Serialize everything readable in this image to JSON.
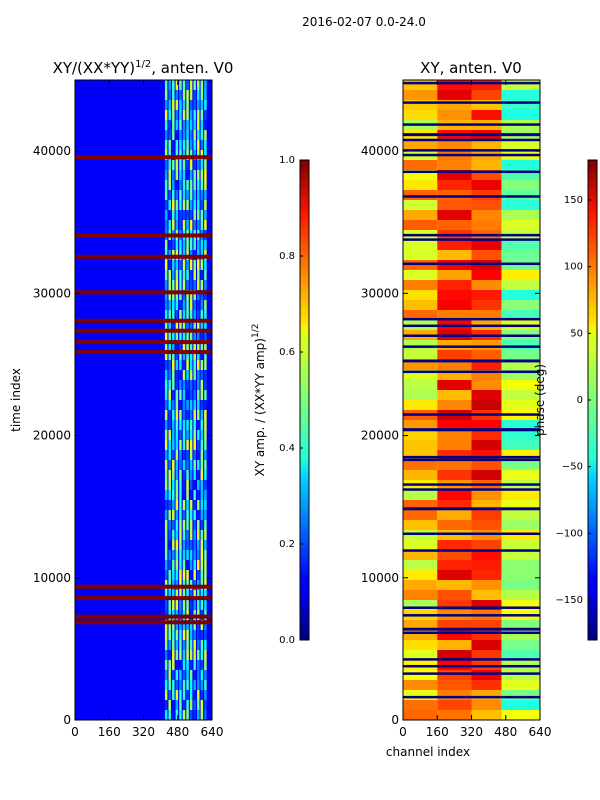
{
  "figure": {
    "suptitle": "2016-02-07 0.0-24.0"
  },
  "chart_data": [
    {
      "type": "heatmap",
      "title_prefix": "XY/(XX*YY)",
      "title_exponent": "1/2",
      "title_suffix": ", anten. V0",
      "xlabel": "",
      "ylabel": "time index",
      "xlim": [
        0,
        640
      ],
      "ylim": [
        0,
        45000
      ],
      "xticks": [
        0,
        160,
        320,
        480,
        640
      ],
      "yticks": [
        0,
        10000,
        20000,
        30000,
        40000
      ],
      "colorbar": {
        "label_prefix": "XY amp. / (XX*YY amp)",
        "label_exponent": "1/2",
        "range": [
          0.0,
          1.0
        ],
        "ticks": [
          "0.0",
          "0.2",
          "0.4",
          "0.6",
          "0.8",
          "1.0"
        ],
        "colormap": "jet"
      },
      "description_values": {
        "background_value": 0.12,
        "active_channel_range": [
          420,
          620
        ],
        "active_channel_value": 0.45,
        "saturated_rows": [
          6800,
          7200,
          8500,
          9300,
          25800,
          26500,
          27300,
          28000,
          30000,
          32500,
          34000,
          39500
        ]
      }
    },
    {
      "type": "heatmap",
      "title": "XY, anten. V0",
      "xlabel": "channel index",
      "ylabel": "",
      "xlim": [
        0,
        640
      ],
      "ylim": [
        0,
        45000
      ],
      "xticks": [
        0,
        160,
        320,
        480,
        640
      ],
      "yticks": [
        0,
        10000,
        20000,
        30000,
        40000
      ],
      "colorbar": {
        "label": "phase (deg)",
        "range": [
          -180,
          180
        ],
        "ticks": [
          "150",
          "100",
          "50",
          "0",
          "−50",
          "−100",
          "−150"
        ],
        "colormap": "jet"
      },
      "description_values": {
        "low_channel_phase": 60,
        "mid_channel_phase": 110,
        "high_channel_phase": 10,
        "flagged_rows_phase": -180
      }
    }
  ]
}
